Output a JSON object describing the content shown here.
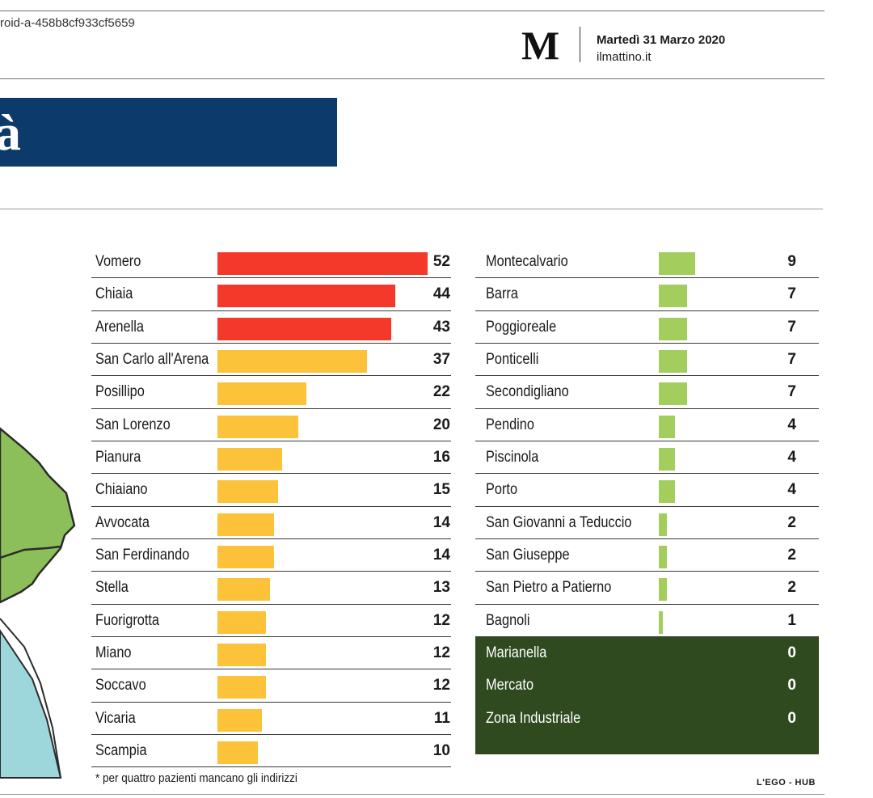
{
  "header": {
    "doc_id": "roid-a-458b8cf933cf5659",
    "logo_letter": "M",
    "date": "Martedì 31 Marzo 2020",
    "site": "ilmattino.it"
  },
  "title_banner": {
    "visible_text": "à",
    "color": "#0c3b6b"
  },
  "colors": {
    "red": "#f4392b",
    "yellow": "#fbc23a",
    "green": "#a3cd5c",
    "dark_green": "#2f4a1f",
    "map_green": "#8cbf59",
    "map_water": "#9dd6db"
  },
  "chart_data": {
    "type": "bar",
    "orientation": "horizontal",
    "xlim": [
      0,
      52
    ],
    "left_column": [
      {
        "label": "Vomero",
        "value": 52,
        "color": "red"
      },
      {
        "label": "Chiaia",
        "value": 44,
        "color": "red"
      },
      {
        "label": "Arenella",
        "value": 43,
        "color": "red"
      },
      {
        "label": "San Carlo all'Arena",
        "value": 37,
        "color": "yellow"
      },
      {
        "label": "Posillipo",
        "value": 22,
        "color": "yellow"
      },
      {
        "label": "San Lorenzo",
        "value": 20,
        "color": "yellow"
      },
      {
        "label": "Pianura",
        "value": 16,
        "color": "yellow"
      },
      {
        "label": "Chiaiano",
        "value": 15,
        "color": "yellow"
      },
      {
        "label": "Avvocata",
        "value": 14,
        "color": "yellow"
      },
      {
        "label": "San Ferdinando",
        "value": 14,
        "color": "yellow"
      },
      {
        "label": "Stella",
        "value": 13,
        "color": "yellow"
      },
      {
        "label": "Fuorigrotta",
        "value": 12,
        "color": "yellow"
      },
      {
        "label": "Miano",
        "value": 12,
        "color": "yellow"
      },
      {
        "label": "Soccavo",
        "value": 12,
        "color": "yellow"
      },
      {
        "label": "Vicaria",
        "value": 11,
        "color": "yellow"
      },
      {
        "label": "Scampia",
        "value": 10,
        "color": "yellow"
      }
    ],
    "right_column": [
      {
        "label": "Montecalvario",
        "value": 9,
        "color": "green"
      },
      {
        "label": "Barra",
        "value": 7,
        "color": "green"
      },
      {
        "label": "Poggioreale",
        "value": 7,
        "color": "green"
      },
      {
        "label": "Ponticelli",
        "value": 7,
        "color": "green"
      },
      {
        "label": "Secondigliano",
        "value": 7,
        "color": "green"
      },
      {
        "label": "Pendino",
        "value": 4,
        "color": "green"
      },
      {
        "label": "Piscinola",
        "value": 4,
        "color": "green"
      },
      {
        "label": "Porto",
        "value": 4,
        "color": "green"
      },
      {
        "label": "San Giovanni a Teduccio",
        "value": 2,
        "color": "green"
      },
      {
        "label": "San Giuseppe",
        "value": 2,
        "color": "green"
      },
      {
        "label": "San Pietro a Patierno",
        "value": 2,
        "color": "green"
      },
      {
        "label": "Bagnoli",
        "value": 1,
        "color": "green"
      },
      {
        "label": "Marianella",
        "value": 0,
        "color": "dark_green"
      },
      {
        "label": "Mercato",
        "value": 0,
        "color": "dark_green"
      },
      {
        "label": "Zona Industriale",
        "value": 0,
        "color": "dark_green"
      }
    ]
  },
  "footnote": "* per quattro pazienti mancano gli indirizzi",
  "credit": "L'EGO - HUB"
}
